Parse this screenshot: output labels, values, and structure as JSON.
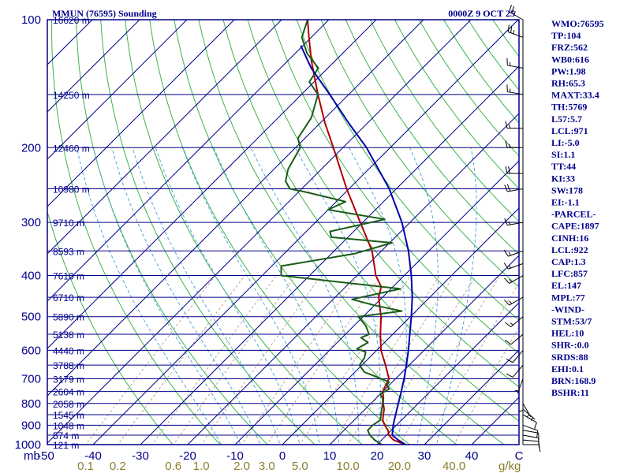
{
  "header": {
    "station": "MMUN (76595) Sounding",
    "time": "0000Z  9 OCT 25"
  },
  "indices": [
    "WMO:76595",
    "TP:104",
    "FRZ:562",
    "WB0:616",
    "PW:1.98",
    "RH:65.3",
    "MAXT:33.4",
    "TH:5769",
    "L57:5.7",
    "LCL:971",
    "LI:-5.0",
    "SI:1.1",
    "TT:44",
    "KI:33",
    "SW:178",
    "EI:-1.1",
    "-PARCEL-",
    "CAPE:1897",
    "CINH:16",
    "LCL:922",
    "CAP:1.3",
    "LFC:857",
    "EL:147",
    "MPL:77",
    "-WIND-",
    "STM:53/7",
    "HEL:10",
    "SHR-:0.0",
    "SRDS:88",
    "EHI:0.1",
    "BRN:168.9",
    "BSHR:11"
  ],
  "chart_data": {
    "type": "line",
    "title": "MMUN (76595) Sounding",
    "subtitle": "0000Z  9 OCT 25",
    "xlabel": "",
    "ylabel": "mb",
    "x_units": "°C (skewed isotherms)",
    "y_scale": "log pressure",
    "ylim": [
      1000,
      100
    ],
    "pressure_ticks": [
      100,
      200,
      300,
      400,
      500,
      600,
      700,
      800,
      900,
      1000
    ],
    "pressure_tick_labels": [
      "100",
      "200",
      "300",
      "400",
      "500",
      "600",
      "700",
      "800",
      "900",
      "1000"
    ],
    "y_axis_unit_label": "mb",
    "temp_ticks": [
      -50,
      -40,
      -30,
      -20,
      -10,
      0,
      10,
      20,
      30,
      40
    ],
    "temp_tick_labels": [
      "-50",
      "-40",
      "-30",
      "-20",
      "-10",
      "0",
      "10",
      "20",
      "30",
      "40"
    ],
    "temp_axis_unit_label": "C",
    "mixing_ratio_ticks": [
      0.1,
      0.2,
      0.6,
      1.0,
      2.0,
      3.0,
      5.0,
      10.0,
      20.0,
      40.0
    ],
    "mixing_ratio_labels": [
      "0.1",
      "0.2",
      "0.6",
      "1.0",
      "2.0",
      "3.0",
      "5.0",
      "10.0",
      "20.0",
      "40.0"
    ],
    "mixing_ratio_unit_label": "g/kg",
    "height_levels": [
      {
        "p": 100,
        "label": "16620 m"
      },
      {
        "p": 150,
        "label": "14250 m"
      },
      {
        "p": 200,
        "label": "12460 m"
      },
      {
        "p": 250,
        "label": "10980 m"
      },
      {
        "p": 300,
        "label": "9710 m"
      },
      {
        "p": 350,
        "label": "8593 m"
      },
      {
        "p": 400,
        "label": "7610 m"
      },
      {
        "p": 450,
        "label": "6710 m"
      },
      {
        "p": 500,
        "label": "5890 m"
      },
      {
        "p": 550,
        "label": "5138 m"
      },
      {
        "p": 600,
        "label": "4440 m"
      },
      {
        "p": 650,
        "label": "3788 m"
      },
      {
        "p": 700,
        "label": "3179 m"
      },
      {
        "p": 750,
        "label": "2604 m"
      },
      {
        "p": 800,
        "label": "2058 m"
      },
      {
        "p": 850,
        "label": "1545 m"
      },
      {
        "p": 900,
        "label": "1048 m"
      },
      {
        "p": 950,
        "label": "574 m"
      },
      {
        "p": 1000,
        "label": "121 m"
      }
    ],
    "series": [
      {
        "name": "temperature",
        "color": "#b00000",
        "points": [
          [
            1010,
            27.0
          ],
          [
            1000,
            26.0
          ],
          [
            975,
            22.5
          ],
          [
            950,
            20.5
          ],
          [
            925,
            19.3
          ],
          [
            900,
            17.5
          ],
          [
            875,
            16.0
          ],
          [
            850,
            15.0
          ],
          [
            825,
            14.0
          ],
          [
            800,
            12.6
          ],
          [
            775,
            11.4
          ],
          [
            750,
            10.0
          ],
          [
            700,
            8.6
          ],
          [
            650,
            5.0
          ],
          [
            600,
            0.9
          ],
          [
            550,
            -2.6
          ],
          [
            500,
            -6.2
          ],
          [
            450,
            -10.8
          ],
          [
            425,
            -12.5
          ],
          [
            400,
            -16.0
          ],
          [
            350,
            -22.0
          ],
          [
            300,
            -30.5
          ],
          [
            250,
            -40.5
          ],
          [
            200,
            -52.0
          ],
          [
            175,
            -59.0
          ],
          [
            150,
            -66.5
          ],
          [
            125,
            -75.0
          ],
          [
            110,
            -80.5
          ],
          [
            100,
            -84.5
          ]
        ]
      },
      {
        "name": "dewpoint",
        "color": "#1a5c1a",
        "points": [
          [
            1010,
            21.5
          ],
          [
            1000,
            21.0
          ],
          [
            975,
            18.5
          ],
          [
            950,
            16.5
          ],
          [
            925,
            15.0
          ],
          [
            900,
            15.0
          ],
          [
            875,
            15.5
          ],
          [
            850,
            14.5
          ],
          [
            825,
            13.5
          ],
          [
            800,
            12.5
          ],
          [
            780,
            11.5
          ],
          [
            760,
            10.0
          ],
          [
            740,
            10.8
          ],
          [
            725,
            9.5
          ],
          [
            712,
            9.3
          ],
          [
            700,
            7.0
          ],
          [
            690,
            5.0
          ],
          [
            675,
            2.0
          ],
          [
            650,
            -0.5
          ],
          [
            625,
            -1.0
          ],
          [
            605,
            -2.0
          ],
          [
            595,
            -4.5
          ],
          [
            575,
            -3.5
          ],
          [
            560,
            -6.0
          ],
          [
            550,
            -5.0
          ],
          [
            525,
            -7.5
          ],
          [
            500,
            -11.0
          ],
          [
            485,
            -3.0
          ],
          [
            470,
            -10.0
          ],
          [
            455,
            -16.0
          ],
          [
            430,
            -8.0
          ],
          [
            400,
            -36.0
          ],
          [
            380,
            -38.0
          ],
          [
            355,
            -25.0
          ],
          [
            335,
            -19.5
          ],
          [
            325,
            -33.5
          ],
          [
            315,
            -35.0
          ],
          [
            295,
            -26.0
          ],
          [
            280,
            -40.0
          ],
          [
            268,
            -38.0
          ],
          [
            255,
            -48.0
          ],
          [
            250,
            -52.5
          ],
          [
            240,
            -55.0
          ],
          [
            225,
            -57.0
          ],
          [
            200,
            -59.0
          ],
          [
            190,
            -61.5
          ],
          [
            170,
            -63.0
          ],
          [
            150,
            -66.5
          ],
          [
            140,
            -71.0
          ],
          [
            130,
            -72.0
          ],
          [
            120,
            -77.5
          ],
          [
            110,
            -82.0
          ],
          [
            100,
            -84.5
          ]
        ]
      },
      {
        "name": "parcel",
        "color": "#0000aa",
        "points": [
          [
            1000,
            26.0
          ],
          [
            975,
            23.5
          ],
          [
            950,
            21.2
          ],
          [
            925,
            20.3
          ],
          [
            900,
            19.3
          ],
          [
            850,
            17.6
          ],
          [
            800,
            15.8
          ],
          [
            750,
            13.9
          ],
          [
            700,
            11.8
          ],
          [
            650,
            9.4
          ],
          [
            600,
            6.7
          ],
          [
            550,
            3.6
          ],
          [
            500,
            0.2
          ],
          [
            450,
            -3.7
          ],
          [
            400,
            -8.5
          ],
          [
            350,
            -14.3
          ],
          [
            300,
            -21.7
          ],
          [
            250,
            -31.5
          ],
          [
            200,
            -45.0
          ],
          [
            175,
            -54.0
          ],
          [
            150,
            -64.0
          ],
          [
            130,
            -73.5
          ],
          [
            115,
            -80.5
          ]
        ]
      }
    ],
    "wind_barbs": [
      {
        "p": 1000,
        "dir": 90,
        "kt": 10
      },
      {
        "p": 975,
        "dir": 95,
        "kt": 10
      },
      {
        "p": 950,
        "dir": 100,
        "kt": 10
      },
      {
        "p": 925,
        "dir": 100,
        "kt": 10
      },
      {
        "p": 900,
        "dir": 110,
        "kt": 10
      },
      {
        "p": 850,
        "dir": 120,
        "kt": 10
      },
      {
        "p": 825,
        "dir": 130,
        "kt": 5
      },
      {
        "p": 800,
        "dir": 150,
        "kt": 5
      },
      {
        "p": 775,
        "dir": 180,
        "kt": 5
      },
      {
        "p": 700,
        "dir": 200,
        "kt": 5
      },
      {
        "p": 650,
        "dir": 220,
        "kt": 10
      },
      {
        "p": 600,
        "dir": 220,
        "kt": 10
      },
      {
        "p": 550,
        "dir": 230,
        "kt": 10
      },
      {
        "p": 500,
        "dir": 230,
        "kt": 15
      },
      {
        "p": 450,
        "dir": 240,
        "kt": 15
      },
      {
        "p": 400,
        "dir": 240,
        "kt": 15
      },
      {
        "p": 375,
        "dir": 250,
        "kt": 15
      },
      {
        "p": 350,
        "dir": 250,
        "kt": 15
      },
      {
        "p": 300,
        "dir": 260,
        "kt": 15
      },
      {
        "p": 250,
        "dir": 260,
        "kt": 20
      },
      {
        "p": 230,
        "dir": 270,
        "kt": 20
      },
      {
        "p": 200,
        "dir": 270,
        "kt": 15
      },
      {
        "p": 180,
        "dir": 270,
        "kt": 15
      },
      {
        "p": 150,
        "dir": 280,
        "kt": 15
      },
      {
        "p": 130,
        "dir": 280,
        "kt": 15
      },
      {
        "p": 110,
        "dir": 290,
        "kt": 25
      },
      {
        "p": 100,
        "dir": 300,
        "kt": 25
      }
    ],
    "colors": {
      "frame": "#00008b",
      "isotherm": "#00008b",
      "dry_adiabat": "#3cb44b",
      "moist_adiabat": "#4fa6e0",
      "mixing_ratio": "#b8a78a",
      "temperature": "#b00000",
      "dewpoint": "#1a5c1a",
      "parcel": "#0000aa",
      "wind": "#000000"
    }
  }
}
